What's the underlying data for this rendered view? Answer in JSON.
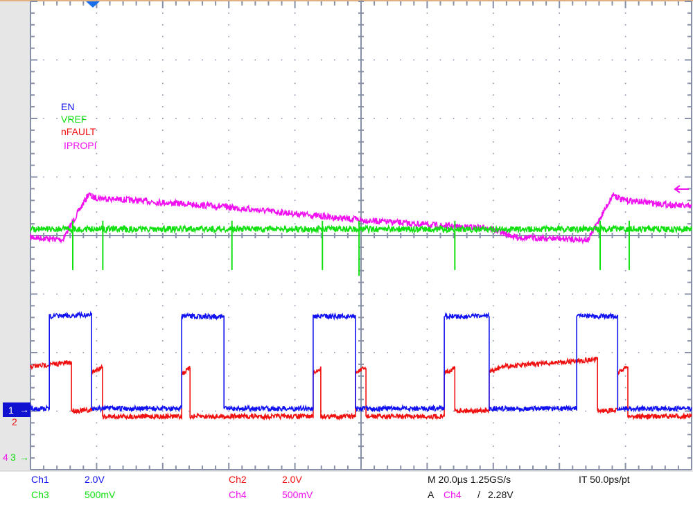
{
  "chart_data": {
    "type": "line",
    "title": "",
    "xlabel": "",
    "ylabel": "",
    "x_unit": "µs",
    "xlim": [
      -18.9,
      181.3
    ],
    "grid": true,
    "legend_placement": "top-left",
    "legend": [
      "EN",
      "VREF",
      "nFAULT",
      "IPROPI"
    ],
    "series": [
      {
        "name": "EN",
        "channel": "Ch1",
        "color": "#1010f0",
        "scale": "2.0V",
        "points": [
          [
            -18.9,
            0.05
          ],
          [
            -13.2,
            0.05
          ],
          [
            -13.2,
            3.2
          ],
          [
            -0.4,
            3.25
          ],
          [
            -0.4,
            0.05
          ],
          [
            26.9,
            0.05
          ],
          [
            26.9,
            3.2
          ],
          [
            39.7,
            3.2
          ],
          [
            39.7,
            0.05
          ],
          [
            66.7,
            0.05
          ],
          [
            66.7,
            3.2
          ],
          [
            79.5,
            3.2
          ],
          [
            79.5,
            0.05
          ],
          [
            106.4,
            0.05
          ],
          [
            106.4,
            3.2
          ],
          [
            120.0,
            3.2
          ],
          [
            120.0,
            0.05
          ],
          [
            146.5,
            0.05
          ],
          [
            146.5,
            3.2
          ],
          [
            158.9,
            3.2
          ],
          [
            158.9,
            0.05
          ],
          [
            181.3,
            0.05
          ]
        ]
      },
      {
        "name": "nFAULT",
        "channel": "Ch2",
        "color": "#f01010",
        "scale": "2.0V",
        "points": [
          [
            -18.9,
            1.8
          ],
          [
            -6.5,
            1.95
          ],
          [
            -6.5,
            0.3
          ],
          [
            -0.4,
            0.3
          ],
          [
            -0.4,
            1.6
          ],
          [
            2.9,
            1.8
          ],
          [
            2.9,
            0.1
          ],
          [
            26.9,
            0.1
          ],
          [
            26.9,
            1.55
          ],
          [
            29.4,
            1.75
          ],
          [
            29.4,
            0.1
          ],
          [
            66.7,
            0.1
          ],
          [
            66.7,
            1.55
          ],
          [
            69.0,
            1.75
          ],
          [
            69.0,
            0.1
          ],
          [
            79.5,
            0.1
          ],
          [
            79.5,
            1.6
          ],
          [
            82.7,
            1.75
          ],
          [
            82.7,
            0.1
          ],
          [
            106.4,
            0.1
          ],
          [
            106.4,
            1.6
          ],
          [
            109.6,
            1.75
          ],
          [
            109.6,
            0.3
          ],
          [
            120.0,
            0.3
          ],
          [
            120.0,
            1.6
          ],
          [
            124.0,
            1.8
          ],
          [
            152.8,
            2.05
          ],
          [
            152.8,
            0.3
          ],
          [
            158.9,
            0.3
          ],
          [
            158.9,
            1.6
          ],
          [
            162.0,
            1.8
          ],
          [
            162.0,
            0.1
          ],
          [
            181.3,
            0.1
          ]
        ]
      },
      {
        "name": "VREF",
        "channel": "Ch3",
        "color": "#10e010",
        "scale": "500mV",
        "points": [
          [
            -18.9,
            1.95
          ],
          [
            181.3,
            1.95
          ]
        ],
        "spikes": [
          [
            -6.1,
            1.6
          ],
          [
            3.0,
            1.6
          ],
          [
            42.1,
            1.6
          ],
          [
            69.5,
            1.6
          ],
          [
            109.6,
            1.6
          ],
          [
            153.6,
            1.6
          ],
          [
            162.4,
            1.6
          ],
          [
            80.6,
            1.55
          ]
        ]
      },
      {
        "name": "IPROPI",
        "channel": "Ch4",
        "color": "#f010f0",
        "scale": "500mV",
        "points": [
          [
            -18.9,
            1.88
          ],
          [
            -9.2,
            1.86
          ],
          [
            -1.3,
            2.25
          ],
          [
            0.0,
            2.22
          ],
          [
            40,
            2.14
          ],
          [
            80,
            2.03
          ],
          [
            110,
            1.97
          ],
          [
            120,
            1.96
          ],
          [
            128,
            1.88
          ],
          [
            150,
            1.86
          ],
          [
            157.6,
            2.25
          ],
          [
            160,
            2.2
          ],
          [
            181.3,
            2.14
          ]
        ]
      }
    ]
  },
  "legend": {
    "ch1": "EN",
    "ch3": "VREF",
    "ch2": "nFAULT",
    "ch4": "IPROPI"
  },
  "markers": {
    "ch1": "1",
    "ch2": "2",
    "ch3": "3",
    "ch4": "4"
  },
  "status": {
    "ch1_label": "Ch1",
    "ch1_scale": "2.0V",
    "ch2_label": "Ch2",
    "ch2_scale": "2.0V",
    "ch3_label": "Ch3",
    "ch3_scale": "500mV",
    "ch4_label": "Ch4",
    "ch4_scale": "500mV",
    "timebase": "M 20.0µs 1.25GS/s",
    "interpolation": "IT 50.0ps/pt",
    "trigger_prefix": "A",
    "trigger_source": "Ch4",
    "trigger_slope": "/",
    "trigger_level": "2.28V"
  },
  "colors": {
    "ch1": "#1010f0",
    "ch2": "#f01010",
    "ch3": "#10e010",
    "ch4": "#f010f0",
    "grid": "#8890a8",
    "trigger_marker": "#1a6ff0"
  }
}
